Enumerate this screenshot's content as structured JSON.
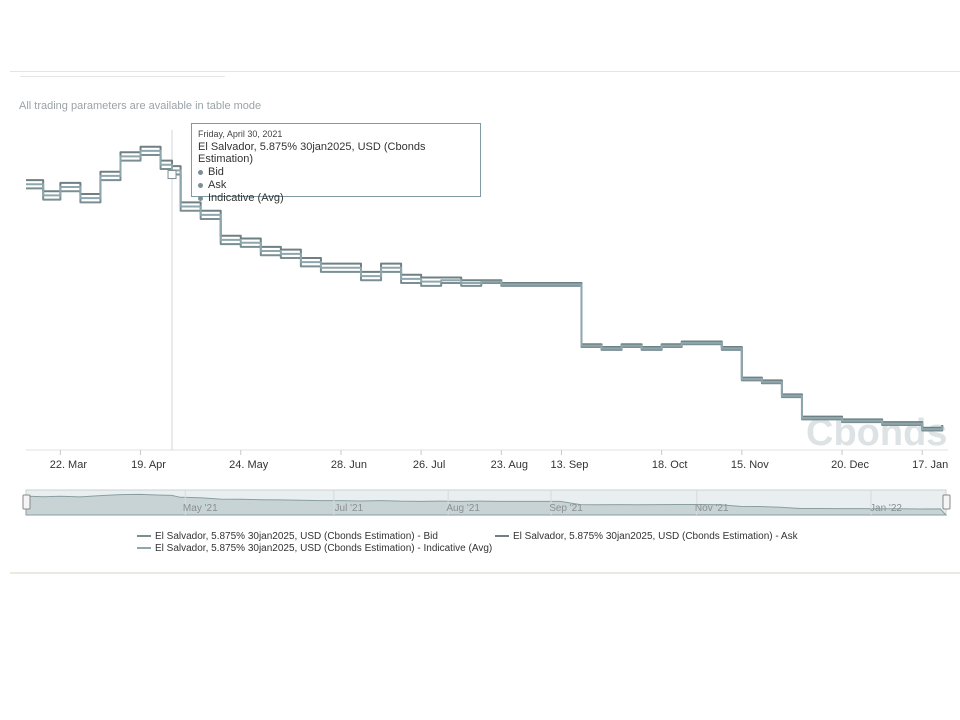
{
  "notice": "All trading parameters are available in table mode",
  "tooltip": {
    "date": "Friday, April 30, 2021",
    "title": "El Salvador, 5.875% 30jan2025, USD (Cbonds Estimation)",
    "rows": [
      "Bid",
      "Ask",
      "Indicative (Avg)"
    ]
  },
  "watermark": "Cbonds",
  "legend": [
    {
      "label": "El Salvador, 5.875% 30jan2025, USD (Cbonds Estimation) - Bid",
      "color": "#7b8f92"
    },
    {
      "label": "El Salvador, 5.875% 30jan2025, USD (Cbonds Estimation) - Ask",
      "color": "#6f8082"
    },
    {
      "label": "El Salvador, 5.875% 30jan2025, USD (Cbonds Estimation) - Indicative (Avg)",
      "color": "#8ea6ad"
    }
  ],
  "colors": {
    "line": "#6f8386",
    "navigator": "#c8d3d6",
    "crosshair": "#cfd6d8"
  },
  "chart_data": {
    "type": "line",
    "x_ticks": [
      "22. Mar",
      "19. Apr",
      "24. May",
      "28. Jun",
      "26. Jul",
      "23. Aug",
      "13. Sep",
      "18. Oct",
      "15. Nov",
      "20. Dec",
      "17. Jan"
    ],
    "navigator_ticks": [
      "May '21",
      "Jul '21",
      "Aug '21",
      "Sep '21",
      "Nov '21",
      "Jan '22"
    ],
    "series": [
      {
        "name": "El Salvador, 5.875% 30jan2025, USD (Cbonds Estimation) - Bid",
        "x": [
          "2021-03-10",
          "2021-03-16",
          "2021-03-22",
          "2021-03-29",
          "2021-04-05",
          "2021-04-12",
          "2021-04-19",
          "2021-04-26",
          "2021-04-30",
          "2021-05-03",
          "2021-05-10",
          "2021-05-17",
          "2021-05-24",
          "2021-05-31",
          "2021-06-07",
          "2021-06-14",
          "2021-06-21",
          "2021-06-28",
          "2021-07-05",
          "2021-07-12",
          "2021-07-19",
          "2021-07-26",
          "2021-08-02",
          "2021-08-09",
          "2021-08-16",
          "2021-08-23",
          "2021-08-30",
          "2021-09-06",
          "2021-09-13",
          "2021-09-20",
          "2021-09-27",
          "2021-10-04",
          "2021-10-11",
          "2021-10-18",
          "2021-10-25",
          "2021-11-01",
          "2021-11-08",
          "2021-11-15",
          "2021-11-22",
          "2021-11-29",
          "2021-12-06",
          "2021-12-13",
          "2021-12-20",
          "2021-12-27",
          "2022-01-03",
          "2022-01-10",
          "2022-01-17",
          "2022-01-24"
        ],
        "values": [
          101.9,
          101.5,
          101.8,
          101.4,
          102.2,
          102.9,
          103.1,
          102.6,
          102.4,
          101.1,
          100.8,
          99.9,
          99.8,
          99.5,
          99.4,
          99.1,
          98.9,
          98.9,
          98.6,
          98.9,
          98.5,
          98.4,
          98.5,
          98.4,
          98.5,
          98.4,
          98.4,
          98.4,
          98.4,
          96.2,
          96.1,
          96.2,
          96.1,
          96.2,
          96.3,
          96.3,
          96.1,
          95.0,
          94.9,
          94.4,
          93.6,
          93.6,
          93.5,
          93.5,
          93.4,
          93.4,
          93.2,
          93.3
        ]
      },
      {
        "name": "El Salvador, 5.875% 30jan2025, USD (Cbonds Estimation) - Ask",
        "x": [
          "2021-03-10",
          "2021-03-16",
          "2021-03-22",
          "2021-03-29",
          "2021-04-05",
          "2021-04-12",
          "2021-04-19",
          "2021-04-26",
          "2021-04-30",
          "2021-05-03",
          "2021-05-10",
          "2021-05-17",
          "2021-05-24",
          "2021-05-31",
          "2021-06-07",
          "2021-06-14",
          "2021-06-21",
          "2021-06-28",
          "2021-07-05",
          "2021-07-12",
          "2021-07-19",
          "2021-07-26",
          "2021-08-02",
          "2021-08-09",
          "2021-08-16",
          "2021-08-23",
          "2021-08-30",
          "2021-09-06",
          "2021-09-13",
          "2021-09-20",
          "2021-09-27",
          "2021-10-04",
          "2021-10-11",
          "2021-10-18",
          "2021-10-25",
          "2021-11-01",
          "2021-11-08",
          "2021-11-15",
          "2021-11-22",
          "2021-11-29",
          "2021-12-06",
          "2021-12-13",
          "2021-12-20",
          "2021-12-27",
          "2022-01-03",
          "2022-01-10",
          "2022-01-17",
          "2022-01-24"
        ],
        "values": [
          102.2,
          101.8,
          102.1,
          101.7,
          102.5,
          103.2,
          103.4,
          102.9,
          102.7,
          101.4,
          101.1,
          100.2,
          100.1,
          99.8,
          99.7,
          99.4,
          99.2,
          99.2,
          98.9,
          99.2,
          98.8,
          98.7,
          98.7,
          98.6,
          98.6,
          98.5,
          98.5,
          98.5,
          98.5,
          96.3,
          96.2,
          96.3,
          96.2,
          96.3,
          96.4,
          96.4,
          96.2,
          95.1,
          95.0,
          94.5,
          93.7,
          93.7,
          93.6,
          93.6,
          93.5,
          93.5,
          93.3,
          93.4
        ]
      },
      {
        "name": "El Salvador, 5.875% 30jan2025, USD (Cbonds Estimation) - Indicative (Avg)",
        "x": [
          "2021-03-10",
          "2021-03-16",
          "2021-03-22",
          "2021-03-29",
          "2021-04-05",
          "2021-04-12",
          "2021-04-19",
          "2021-04-26",
          "2021-04-30",
          "2021-05-03",
          "2021-05-10",
          "2021-05-17",
          "2021-05-24",
          "2021-05-31",
          "2021-06-07",
          "2021-06-14",
          "2021-06-21",
          "2021-06-28",
          "2021-07-05",
          "2021-07-12",
          "2021-07-19",
          "2021-07-26",
          "2021-08-02",
          "2021-08-09",
          "2021-08-16",
          "2021-08-23",
          "2021-08-30",
          "2021-09-06",
          "2021-09-13",
          "2021-09-20",
          "2021-09-27",
          "2021-10-04",
          "2021-10-11",
          "2021-10-18",
          "2021-10-25",
          "2021-11-01",
          "2021-11-08",
          "2021-11-15",
          "2021-11-22",
          "2021-11-29",
          "2021-12-06",
          "2021-12-13",
          "2021-12-20",
          "2021-12-27",
          "2022-01-03",
          "2022-01-10",
          "2022-01-17",
          "2022-01-24"
        ],
        "values": [
          102.05,
          101.65,
          101.95,
          101.55,
          102.35,
          103.05,
          103.25,
          102.75,
          102.55,
          101.25,
          100.95,
          100.05,
          99.95,
          99.65,
          99.55,
          99.25,
          99.05,
          99.05,
          98.75,
          99.05,
          98.65,
          98.55,
          98.6,
          98.5,
          98.55,
          98.45,
          98.45,
          98.45,
          98.45,
          96.25,
          96.15,
          96.25,
          96.15,
          96.25,
          96.35,
          96.35,
          96.15,
          95.05,
          94.95,
          94.45,
          93.65,
          93.65,
          93.55,
          93.55,
          93.45,
          93.45,
          93.25,
          93.35
        ]
      }
    ],
    "ylim": [
      92.5,
      104.0
    ],
    "highlight_date": "2021-04-30"
  }
}
